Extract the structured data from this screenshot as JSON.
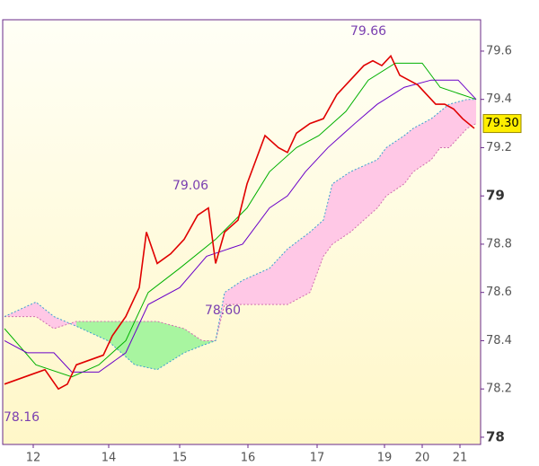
{
  "chart_data": {
    "type": "ichimoku",
    "annotations": [
      "79.66",
      "79.06",
      "78.60",
      "78.16"
    ],
    "last_price": {
      "value": 79.3,
      "label": "79.30"
    },
    "xlim": [
      0,
      532
    ],
    "xticks": [
      {
        "value": 34,
        "label": "12"
      },
      {
        "value": 118,
        "label": "14"
      },
      {
        "value": 197,
        "label": "15"
      },
      {
        "value": 273,
        "label": "16"
      },
      {
        "value": 350,
        "label": "17"
      },
      {
        "value": 425,
        "label": "19"
      },
      {
        "value": 467,
        "label": "20"
      },
      {
        "value": 509,
        "label": "21"
      }
    ],
    "ylim": [
      77.97,
      79.73
    ],
    "yticks": [
      79.6,
      79.4,
      79.2,
      79,
      78.8,
      78.6,
      78.4,
      78.2,
      78
    ],
    "price": {
      "color": "#e00000",
      "x": [
        2,
        17,
        32,
        47,
        62,
        72,
        82,
        97,
        112,
        122,
        137,
        152,
        160,
        172,
        187,
        202,
        217,
        229,
        237,
        247,
        262,
        272,
        282,
        292,
        307,
        317,
        327,
        342,
        357,
        372,
        382,
        392,
        402,
        412,
        422,
        432,
        442,
        452,
        462,
        472,
        482,
        492,
        502,
        512,
        525
      ],
      "values": [
        78.22,
        78.24,
        78.26,
        78.28,
        78.2,
        78.22,
        78.3,
        78.32,
        78.34,
        78.42,
        78.5,
        78.62,
        78.85,
        78.72,
        78.76,
        78.82,
        78.92,
        78.95,
        78.72,
        78.85,
        78.9,
        79.05,
        79.15,
        79.25,
        79.2,
        79.18,
        79.26,
        79.3,
        79.32,
        79.42,
        79.46,
        79.5,
        79.54,
        79.56,
        79.54,
        79.58,
        79.5,
        79.48,
        79.46,
        79.42,
        79.38,
        79.38,
        79.36,
        79.32,
        79.28
      ]
    },
    "lines": [
      {
        "color": "#00b000",
        "x": [
          2,
          37,
          77,
          107,
          137,
          162,
          197,
          237,
          272,
          297,
          327,
          352,
          382,
          407,
          437,
          467,
          487,
          527
        ],
        "values": [
          78.45,
          78.3,
          78.25,
          78.3,
          78.4,
          78.6,
          78.7,
          78.82,
          78.95,
          79.1,
          79.2,
          79.25,
          79.35,
          79.48,
          79.55,
          79.55,
          79.45,
          79.4
        ]
      },
      {
        "color": "#6a00c8",
        "x": [
          2,
          27,
          57,
          77,
          107,
          137,
          162,
          197,
          227,
          267,
          297,
          317,
          337,
          362,
          392,
          417,
          447,
          477,
          507,
          527
        ],
        "values": [
          78.4,
          78.35,
          78.35,
          78.27,
          78.27,
          78.35,
          78.55,
          78.62,
          78.75,
          78.8,
          78.95,
          79.0,
          79.1,
          79.2,
          79.3,
          79.38,
          79.45,
          79.48,
          79.48,
          79.4
        ]
      }
    ],
    "cloud": {
      "up_color": "#a8f5a0",
      "down_color": "#ffc8e6",
      "x": [
        2,
        37,
        57,
        82,
        117,
        147,
        172,
        202,
        222,
        237,
        247,
        267,
        297,
        317,
        342,
        357,
        367,
        387,
        417,
        427,
        447,
        457,
        477,
        487,
        497,
        517,
        527
      ],
      "span_a": [
        78.5,
        78.5,
        78.45,
        78.48,
        78.48,
        78.48,
        78.48,
        78.45,
        78.4,
        78.4,
        78.55,
        78.55,
        78.55,
        78.55,
        78.6,
        78.75,
        78.8,
        78.85,
        78.95,
        79.0,
        79.05,
        79.1,
        79.15,
        79.2,
        79.2,
        79.28,
        79.3
      ],
      "span_b": [
        78.5,
        78.56,
        78.5,
        78.46,
        78.4,
        78.3,
        78.28,
        78.35,
        78.38,
        78.4,
        78.6,
        78.65,
        78.7,
        78.78,
        78.85,
        78.9,
        79.05,
        79.1,
        79.15,
        79.2,
        79.25,
        79.28,
        79.32,
        79.35,
        79.38,
        79.4,
        79.4
      ]
    }
  }
}
